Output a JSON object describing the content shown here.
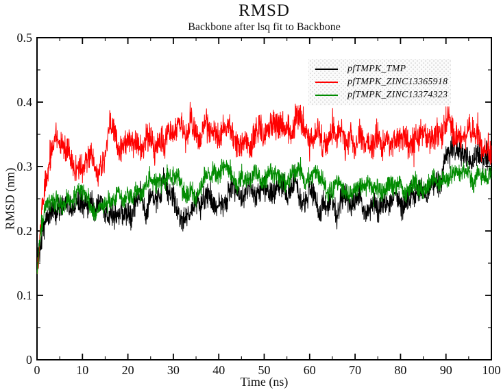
{
  "page": {
    "background": "#ffffff"
  },
  "chart_data": {
    "type": "line",
    "title": "RMSD",
    "subtitle": "Backbone after lsq fit to Backbone",
    "xlabel": "Time (ns)",
    "ylabel": "RMSD (nm)",
    "xlim": [
      0,
      100
    ],
    "ylim": [
      0,
      0.5
    ],
    "x_major_ticks": [
      0,
      10,
      20,
      30,
      40,
      50,
      60,
      70,
      80,
      90,
      100
    ],
    "x_tick_labels": [
      "0",
      "10",
      "20",
      "30",
      "40",
      "50",
      "60",
      "70",
      "80",
      "90",
      "100"
    ],
    "x_minor_ticks": [
      5,
      15,
      25,
      35,
      45,
      55,
      65,
      75,
      85,
      95
    ],
    "y_major_ticks": [
      0,
      0.1,
      0.2,
      0.3,
      0.4,
      0.5
    ],
    "y_tick_labels": [
      "0",
      "0.1",
      "0.2",
      "0.3",
      "0.4",
      "0.5"
    ],
    "y_minor_ticks": [
      0.05,
      0.15,
      0.25,
      0.35,
      0.45
    ],
    "grid": false,
    "legend_position": "inside-top-right",
    "axis_color": "#000000",
    "frame": "box-with-mirrored-inward-ticks",
    "series": [
      {
        "name": "pfTMPK_TMP",
        "color": "#000000",
        "noise_amp": 0.019,
        "x": [
          0,
          0.5,
          1,
          2,
          4,
          6,
          8,
          10,
          12,
          14,
          15,
          16,
          18,
          20,
          22,
          24,
          26,
          28,
          29,
          30,
          32,
          34,
          36,
          38,
          40,
          42,
          44,
          46,
          48,
          50,
          52,
          54,
          56,
          58,
          60,
          62,
          64,
          66,
          68,
          70,
          72,
          74,
          76,
          78,
          80,
          82,
          84,
          86,
          88,
          90,
          92,
          94,
          96,
          98,
          100
        ],
        "mean_y": [
          0.15,
          0.18,
          0.2,
          0.22,
          0.245,
          0.25,
          0.24,
          0.235,
          0.23,
          0.235,
          0.215,
          0.23,
          0.22,
          0.24,
          0.25,
          0.24,
          0.25,
          0.27,
          0.275,
          0.25,
          0.225,
          0.23,
          0.24,
          0.245,
          0.25,
          0.26,
          0.26,
          0.25,
          0.26,
          0.255,
          0.25,
          0.26,
          0.27,
          0.26,
          0.25,
          0.24,
          0.235,
          0.24,
          0.245,
          0.25,
          0.24,
          0.235,
          0.24,
          0.25,
          0.245,
          0.25,
          0.26,
          0.27,
          0.28,
          0.3,
          0.32,
          0.33,
          0.32,
          0.315,
          0.31
        ]
      },
      {
        "name": "pfTMPK_ZINC13365918",
        "color": "#ff0000",
        "noise_amp": 0.021,
        "x": [
          0,
          0.5,
          1,
          2,
          3,
          4,
          5,
          6,
          8,
          10,
          12,
          14,
          15,
          16,
          17,
          18,
          20,
          22,
          24,
          26,
          28,
          30,
          32,
          34,
          36,
          38,
          40,
          42,
          44,
          46,
          48,
          50,
          52,
          54,
          56,
          58,
          60,
          62,
          64,
          66,
          68,
          70,
          72,
          74,
          76,
          78,
          80,
          82,
          84,
          86,
          88,
          90,
          92,
          94,
          96,
          98,
          100
        ],
        "mean_y": [
          0.13,
          0.18,
          0.22,
          0.27,
          0.3,
          0.33,
          0.34,
          0.33,
          0.31,
          0.3,
          0.3,
          0.31,
          0.32,
          0.35,
          0.36,
          0.34,
          0.33,
          0.33,
          0.34,
          0.33,
          0.34,
          0.35,
          0.36,
          0.355,
          0.36,
          0.365,
          0.35,
          0.345,
          0.35,
          0.345,
          0.35,
          0.355,
          0.35,
          0.36,
          0.365,
          0.36,
          0.345,
          0.34,
          0.345,
          0.34,
          0.345,
          0.34,
          0.345,
          0.34,
          0.335,
          0.34,
          0.345,
          0.34,
          0.345,
          0.355,
          0.365,
          0.355,
          0.35,
          0.355,
          0.345,
          0.34,
          0.33
        ]
      },
      {
        "name": "pfTMPK_ZINC13374323",
        "color": "#008b00",
        "noise_amp": 0.015,
        "x": [
          0,
          0.5,
          1,
          2,
          4,
          6,
          8,
          10,
          12,
          13,
          14,
          16,
          18,
          20,
          22,
          24,
          26,
          28,
          30,
          32,
          34,
          35,
          36,
          38,
          40,
          42,
          44,
          46,
          48,
          50,
          52,
          54,
          56,
          58,
          60,
          62,
          64,
          66,
          68,
          70,
          72,
          74,
          76,
          78,
          80,
          82,
          84,
          86,
          88,
          90,
          92,
          94,
          96,
          98,
          100
        ],
        "mean_y": [
          0.14,
          0.17,
          0.2,
          0.23,
          0.25,
          0.25,
          0.255,
          0.25,
          0.24,
          0.22,
          0.24,
          0.25,
          0.255,
          0.25,
          0.26,
          0.27,
          0.28,
          0.285,
          0.28,
          0.27,
          0.26,
          0.25,
          0.27,
          0.285,
          0.29,
          0.285,
          0.28,
          0.285,
          0.28,
          0.285,
          0.29,
          0.285,
          0.28,
          0.285,
          0.28,
          0.275,
          0.27,
          0.275,
          0.27,
          0.265,
          0.27,
          0.265,
          0.27,
          0.275,
          0.27,
          0.265,
          0.27,
          0.275,
          0.27,
          0.275,
          0.28,
          0.285,
          0.28,
          0.285,
          0.29
        ]
      }
    ]
  }
}
